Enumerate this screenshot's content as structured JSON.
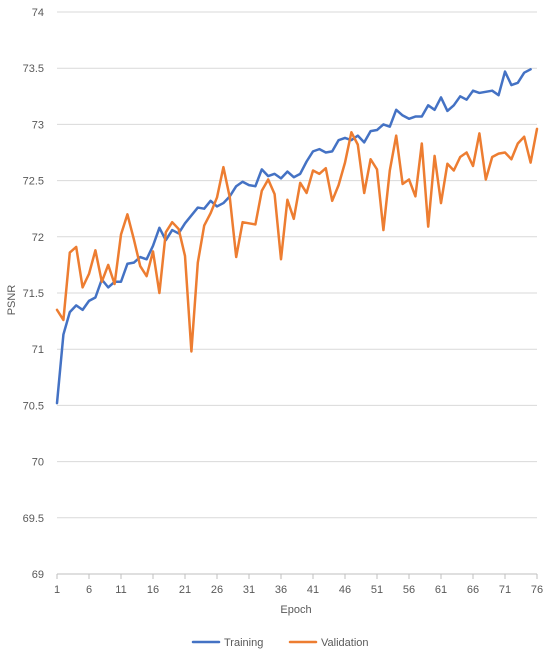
{
  "chart_data": {
    "type": "line",
    "xlabel": "Epoch",
    "ylabel": "PSNR",
    "x_ticks": [
      1,
      6,
      11,
      16,
      21,
      26,
      31,
      36,
      41,
      46,
      51,
      56,
      61,
      66,
      71,
      76
    ],
    "xlim": [
      1,
      76
    ],
    "ylim": [
      69,
      74
    ],
    "y_ticks": [
      69,
      69.5,
      70,
      70.5,
      71,
      71.5,
      72,
      72.5,
      73,
      73.5,
      74
    ],
    "grid": "horizontal",
    "legend_position": "bottom",
    "series": [
      {
        "name": "Training",
        "color": "#4472C4",
        "x": [
          1,
          2,
          3,
          4,
          5,
          6,
          7,
          8,
          9,
          10,
          11,
          12,
          13,
          14,
          15,
          16,
          17,
          18,
          19,
          20,
          21,
          22,
          23,
          24,
          25,
          26,
          27,
          28,
          29,
          30,
          31,
          32,
          33,
          34,
          35,
          36,
          37,
          38,
          39,
          40,
          41,
          42,
          43,
          44,
          45,
          46,
          47,
          48,
          49,
          50,
          51,
          52,
          53,
          54,
          55,
          56,
          57,
          58,
          59,
          60,
          61,
          62,
          63,
          64,
          65,
          66,
          67,
          68,
          69,
          70,
          71,
          72,
          73,
          74,
          75
        ],
        "values": [
          70.52,
          71.13,
          71.33,
          71.39,
          71.35,
          71.43,
          71.46,
          71.62,
          71.55,
          71.6,
          71.6,
          71.76,
          71.77,
          71.82,
          71.8,
          71.92,
          72.08,
          71.97,
          72.06,
          72.03,
          72.12,
          72.19,
          72.26,
          72.25,
          72.32,
          72.27,
          72.3,
          72.36,
          72.45,
          72.49,
          72.46,
          72.45,
          72.6,
          72.54,
          72.56,
          72.52,
          72.58,
          72.53,
          72.56,
          72.67,
          72.76,
          72.78,
          72.75,
          72.76,
          72.86,
          72.88,
          72.86,
          72.9,
          72.84,
          72.94,
          72.95,
          73.0,
          72.98,
          73.13,
          73.08,
          73.05,
          73.07,
          73.07,
          73.17,
          73.13,
          73.24,
          73.12,
          73.17,
          73.25,
          73.22,
          73.3,
          73.28,
          73.29,
          73.3,
          73.26,
          73.47,
          73.35,
          73.37,
          73.46,
          73.49
        ]
      },
      {
        "name": "Validation",
        "color": "#ED7D31",
        "x": [
          1,
          2,
          3,
          4,
          5,
          6,
          7,
          8,
          9,
          10,
          11,
          12,
          13,
          14,
          15,
          16,
          17,
          18,
          19,
          20,
          21,
          22,
          23,
          24,
          25,
          26,
          27,
          28,
          29,
          30,
          31,
          32,
          33,
          34,
          35,
          36,
          37,
          38,
          39,
          40,
          41,
          42,
          43,
          44,
          45,
          46,
          47,
          48,
          49,
          50,
          51,
          52,
          53,
          54,
          55,
          56,
          57,
          58,
          59,
          60,
          61,
          62,
          63,
          64,
          65,
          66,
          67,
          68,
          69,
          70,
          71,
          72,
          73,
          74,
          75,
          76
        ],
        "values": [
          71.35,
          71.26,
          71.86,
          71.91,
          71.55,
          71.67,
          71.88,
          71.6,
          71.75,
          71.58,
          72.02,
          72.2,
          71.98,
          71.74,
          71.65,
          71.87,
          71.5,
          72.04,
          72.13,
          72.07,
          71.83,
          70.98,
          71.77,
          72.1,
          72.21,
          72.35,
          72.62,
          72.35,
          71.82,
          72.13,
          72.12,
          72.11,
          72.41,
          72.51,
          72.38,
          71.8,
          72.33,
          72.16,
          72.48,
          72.39,
          72.59,
          72.56,
          72.61,
          72.32,
          72.46,
          72.66,
          72.93,
          72.82,
          72.39,
          72.69,
          72.6,
          72.06,
          72.59,
          72.9,
          72.47,
          72.51,
          72.36,
          72.83,
          72.09,
          72.72,
          72.3,
          72.65,
          72.59,
          72.71,
          72.75,
          72.63,
          72.92,
          72.51,
          72.71,
          72.74,
          72.75,
          72.69,
          72.83,
          72.89,
          72.66,
          72.96
        ]
      }
    ]
  }
}
